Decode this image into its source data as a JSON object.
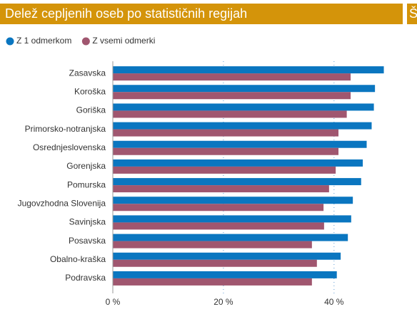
{
  "chart_data": {
    "type": "bar",
    "orientation": "horizontal",
    "title": "Delež cepljenih oseb po statističnih regijah",
    "next_panel_title": "Š",
    "categories": [
      "Zasavska",
      "Koroška",
      "Goriška",
      "Primorsko-notranjska",
      "Osrednjeslovenska",
      "Gorenjska",
      "Pomurska",
      "Jugovzhodna Slovenija",
      "Savinjska",
      "Posavska",
      "Obalno-kraška",
      "Podravska"
    ],
    "series": [
      {
        "name": "Z 1 odmerkom",
        "color": "#0a76c0",
        "values": [
          49.0,
          47.4,
          47.2,
          46.8,
          45.9,
          45.2,
          44.9,
          43.4,
          43.1,
          42.5,
          41.2,
          40.5
        ]
      },
      {
        "name": "Z vsemi odmerki",
        "color": "#a0566f",
        "values": [
          43.0,
          43.0,
          42.3,
          40.8,
          40.8,
          40.3,
          39.1,
          38.1,
          38.2,
          36.0,
          36.9,
          36.0
        ]
      }
    ],
    "xlim": [
      0,
      55
    ],
    "xticks": [
      {
        "value": 0,
        "label": "0 %"
      },
      {
        "value": 20,
        "label": "20 %"
      },
      {
        "value": 40,
        "label": "40 %"
      }
    ],
    "grid": true,
    "legend": "top-left"
  }
}
